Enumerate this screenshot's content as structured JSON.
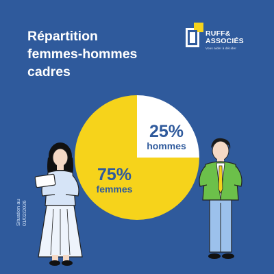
{
  "header": {
    "title_lines": [
      "Répartition",
      "femmes-hommes",
      "cadres"
    ]
  },
  "logo": {
    "name_line1": "RUFF&",
    "name_line2": "ASSOCIÉS",
    "tagline": "Vous aider à décider"
  },
  "chart_data": {
    "type": "pie",
    "title": "Répartition femmes-hommes cadres",
    "slices": [
      {
        "label": "hommes",
        "value": 25,
        "display": "25%",
        "color": "#ffffff"
      },
      {
        "label": "femmes",
        "value": 75,
        "display": "75%",
        "color": "#f6d31b"
      }
    ]
  },
  "footnote": {
    "line1": "Situation au",
    "line2": "01/02/2026"
  },
  "colors": {
    "background": "#2f5a9c",
    "accent_yellow": "#f6d31b",
    "label_blue": "#2f5a9c"
  }
}
